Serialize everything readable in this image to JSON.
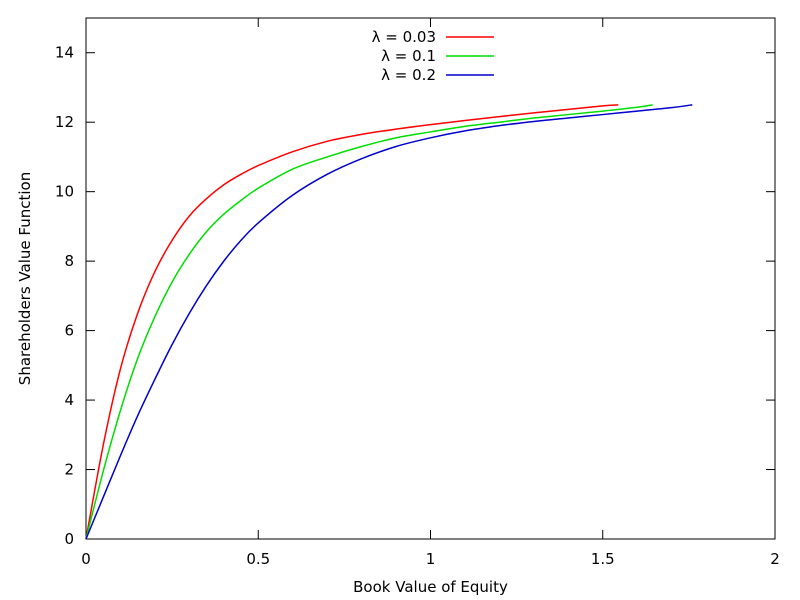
{
  "chart_data": {
    "type": "line",
    "title": "",
    "xlabel": "Book Value of Equity",
    "ylabel": "Shareholders Value Function",
    "xlim": [
      0,
      2
    ],
    "ylim": [
      0,
      15
    ],
    "xticks": [
      0,
      0.5,
      1,
      1.5,
      2
    ],
    "xtick_labels": [
      "0",
      "0.5",
      "1",
      "1.5",
      "2"
    ],
    "yticks": [
      0,
      2,
      4,
      6,
      8,
      10,
      12,
      14
    ],
    "ytick_labels": [
      "0",
      "2",
      "4",
      "6",
      "8",
      "10",
      "12",
      "14"
    ],
    "grid": false,
    "legend_position": "top-center",
    "series": [
      {
        "name": "λ = 0.03",
        "color": "#ff0000",
        "x": [
          0,
          0.05,
          0.1,
          0.15,
          0.2,
          0.25,
          0.3,
          0.35,
          0.4,
          0.45,
          0.5,
          0.6,
          0.7,
          0.8,
          0.9,
          1.0,
          1.1,
          1.2,
          1.3,
          1.4,
          1.5,
          1.545
        ],
        "y": [
          0,
          2.7,
          4.9,
          6.5,
          7.7,
          8.6,
          9.3,
          9.8,
          10.2,
          10.5,
          10.75,
          11.15,
          11.45,
          11.65,
          11.8,
          11.93,
          12.05,
          12.16,
          12.27,
          12.37,
          12.47,
          12.5
        ]
      },
      {
        "name": "λ = 0.1",
        "color": "#00dd00",
        "x": [
          0,
          0.05,
          0.1,
          0.15,
          0.2,
          0.25,
          0.3,
          0.35,
          0.4,
          0.45,
          0.5,
          0.6,
          0.7,
          0.8,
          0.9,
          1.0,
          1.1,
          1.2,
          1.3,
          1.4,
          1.5,
          1.6,
          1.645
        ],
        "y": [
          0,
          1.95,
          3.7,
          5.2,
          6.4,
          7.4,
          8.2,
          8.85,
          9.35,
          9.75,
          10.1,
          10.65,
          11.0,
          11.3,
          11.55,
          11.72,
          11.88,
          12.0,
          12.12,
          12.22,
          12.32,
          12.43,
          12.5
        ]
      },
      {
        "name": "λ = 0.2",
        "color": "#0000cc",
        "x": [
          0,
          0.05,
          0.1,
          0.15,
          0.2,
          0.25,
          0.3,
          0.35,
          0.4,
          0.45,
          0.5,
          0.6,
          0.7,
          0.8,
          0.9,
          1.0,
          1.1,
          1.2,
          1.3,
          1.4,
          1.5,
          1.6,
          1.7,
          1.76
        ],
        "y": [
          0,
          1.2,
          2.4,
          3.55,
          4.6,
          5.6,
          6.5,
          7.3,
          8.0,
          8.6,
          9.1,
          9.9,
          10.5,
          10.95,
          11.3,
          11.55,
          11.75,
          11.9,
          12.02,
          12.12,
          12.22,
          12.32,
          12.42,
          12.5
        ]
      }
    ]
  }
}
